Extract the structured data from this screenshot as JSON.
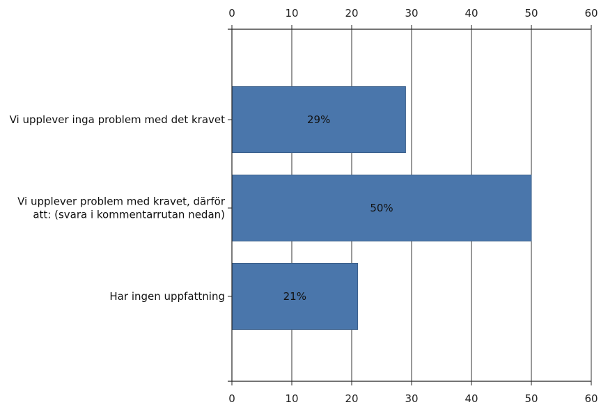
{
  "chart_data": {
    "type": "bar",
    "orientation": "horizontal",
    "categories": [
      [
        "Vi upplever inga problem med det kravet"
      ],
      [
        "Vi upplever problem med kravet, därför",
        "att: (svara i kommentarrutan nedan)"
      ],
      [
        "Har ingen uppfattning"
      ]
    ],
    "values": [
      29,
      50,
      21
    ],
    "data_labels": [
      "29%",
      "50%",
      "21%"
    ],
    "xlim": [
      0,
      60
    ],
    "ticks": [
      0,
      10,
      20,
      30,
      40,
      50,
      60
    ],
    "tick_labels": [
      "0",
      "10",
      "20",
      "30",
      "40",
      "50",
      "60"
    ],
    "axis_position": "top-and-bottom",
    "grid": true,
    "bar_color": "#4a76ab",
    "bar_edge_color": "#3b5f8a",
    "grid_color": "#333333"
  }
}
